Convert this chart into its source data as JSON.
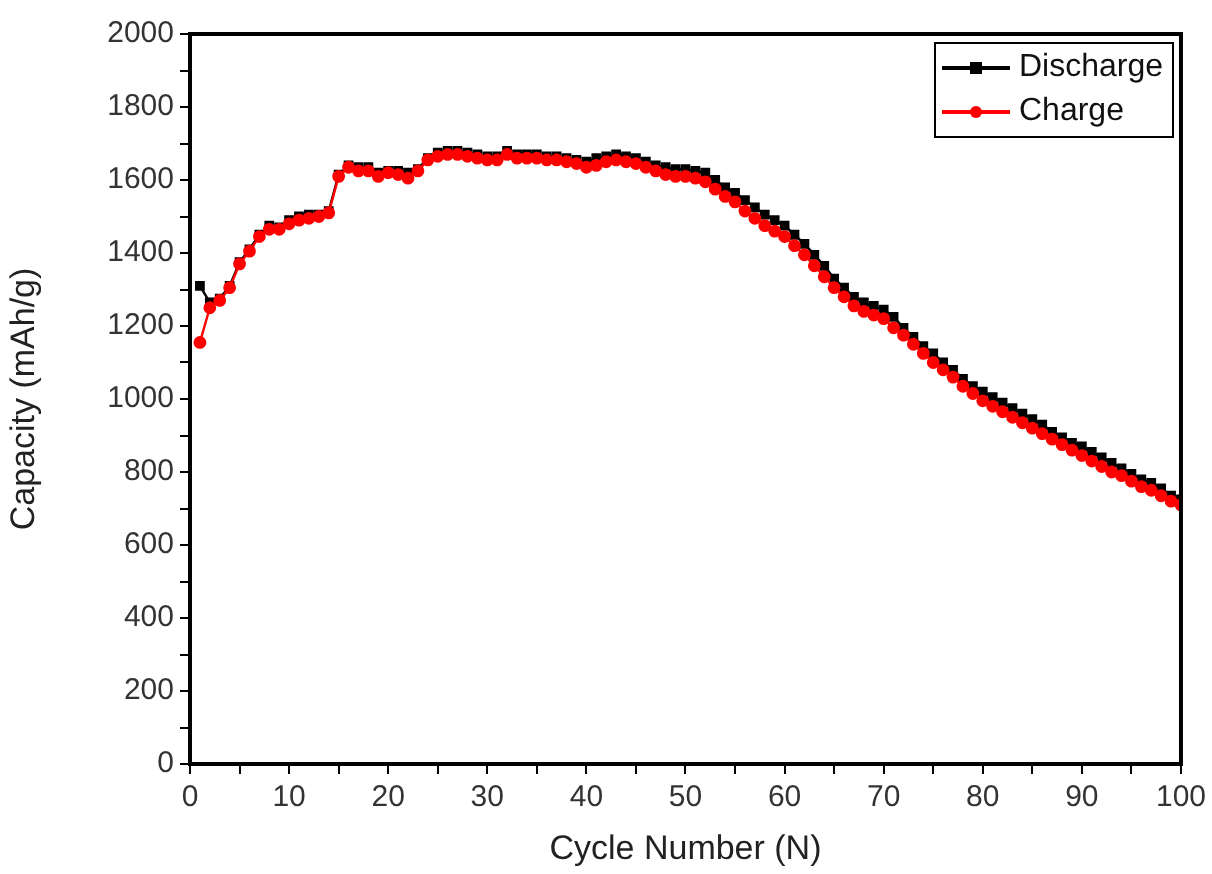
{
  "chart_data": {
    "type": "line",
    "xlabel": "Cycle Number (N)",
    "ylabel": "Capacity (mAh/g)",
    "x": [
      1,
      2,
      3,
      4,
      5,
      6,
      7,
      8,
      9,
      10,
      11,
      12,
      13,
      14,
      15,
      16,
      17,
      18,
      19,
      20,
      21,
      22,
      23,
      24,
      25,
      26,
      27,
      28,
      29,
      30,
      31,
      32,
      33,
      34,
      35,
      36,
      37,
      38,
      39,
      40,
      41,
      42,
      43,
      44,
      45,
      46,
      47,
      48,
      49,
      50,
      51,
      52,
      53,
      54,
      55,
      56,
      57,
      58,
      59,
      60,
      61,
      62,
      63,
      64,
      65,
      66,
      67,
      68,
      69,
      70,
      71,
      72,
      73,
      74,
      75,
      76,
      77,
      78,
      79,
      80,
      81,
      82,
      83,
      84,
      85,
      86,
      87,
      88,
      89,
      90,
      91,
      92,
      93,
      94,
      95,
      96,
      97,
      98,
      99,
      100
    ],
    "series": [
      {
        "name": "Discharge",
        "color": "#000000",
        "marker": "square",
        "values": [
          1310,
          1265,
          1275,
          1310,
          1375,
          1410,
          1450,
          1475,
          1470,
          1490,
          1500,
          1505,
          1505,
          1515,
          1615,
          1640,
          1635,
          1635,
          1620,
          1625,
          1625,
          1620,
          1630,
          1660,
          1675,
          1680,
          1680,
          1675,
          1670,
          1665,
          1665,
          1680,
          1670,
          1670,
          1670,
          1665,
          1665,
          1660,
          1655,
          1650,
          1660,
          1665,
          1670,
          1665,
          1660,
          1650,
          1640,
          1635,
          1630,
          1630,
          1625,
          1620,
          1600,
          1580,
          1565,
          1545,
          1525,
          1505,
          1490,
          1475,
          1450,
          1425,
          1395,
          1365,
          1330,
          1305,
          1280,
          1265,
          1255,
          1245,
          1225,
          1195,
          1170,
          1145,
          1125,
          1100,
          1080,
          1055,
          1035,
          1020,
          1005,
          990,
          975,
          960,
          945,
          930,
          910,
          895,
          880,
          870,
          855,
          840,
          825,
          810,
          795,
          780,
          770,
          755,
          735,
          725
        ]
      },
      {
        "name": "Charge",
        "color": "#ff0000",
        "marker": "circle",
        "values": [
          1155,
          1250,
          1270,
          1305,
          1370,
          1405,
          1445,
          1465,
          1465,
          1480,
          1490,
          1495,
          1500,
          1510,
          1610,
          1635,
          1625,
          1625,
          1610,
          1620,
          1615,
          1605,
          1625,
          1655,
          1665,
          1670,
          1670,
          1665,
          1660,
          1655,
          1655,
          1670,
          1660,
          1660,
          1660,
          1655,
          1655,
          1650,
          1645,
          1635,
          1640,
          1650,
          1655,
          1650,
          1645,
          1635,
          1625,
          1615,
          1610,
          1610,
          1605,
          1595,
          1575,
          1555,
          1540,
          1515,
          1495,
          1475,
          1460,
          1445,
          1420,
          1395,
          1365,
          1335,
          1305,
          1280,
          1255,
          1240,
          1230,
          1220,
          1195,
          1175,
          1150,
          1125,
          1100,
          1080,
          1060,
          1035,
          1015,
          995,
          980,
          965,
          950,
          935,
          920,
          905,
          890,
          875,
          860,
          845,
          830,
          815,
          800,
          790,
          775,
          760,
          750,
          735,
          720,
          710
        ]
      }
    ],
    "xlim": [
      0,
      100
    ],
    "xticks": [
      0,
      {
        "value": 5,
        "label": null
      },
      10,
      {
        "value": 15,
        "label": null
      },
      20,
      {
        "value": 25,
        "label": null
      },
      30,
      {
        "value": 35,
        "label": null
      },
      40,
      {
        "value": 45,
        "label": null
      },
      50,
      {
        "value": 55,
        "label": null
      },
      60,
      {
        "value": 65,
        "label": null
      },
      70,
      {
        "value": 75,
        "label": null
      },
      80,
      {
        "value": 85,
        "label": null
      },
      90,
      {
        "value": 95,
        "label": null
      },
      100
    ],
    "ylim": [
      0,
      2000
    ],
    "yticks": [
      0,
      {
        "value": 100,
        "label": null
      },
      200,
      {
        "value": 300,
        "label": null
      },
      400,
      {
        "value": 500,
        "label": null
      },
      600,
      {
        "value": 700,
        "label": null
      },
      800,
      {
        "value": 900,
        "label": null
      },
      1000,
      {
        "value": 1100,
        "label": null
      },
      1200,
      {
        "value": 1300,
        "label": null
      },
      1400,
      {
        "value": 1500,
        "label": null
      },
      1600,
      {
        "value": 1700,
        "label": null
      },
      1800,
      {
        "value": 1900,
        "label": null
      },
      2000
    ],
    "grid": false,
    "legend": "top right",
    "line_style": "solid"
  }
}
